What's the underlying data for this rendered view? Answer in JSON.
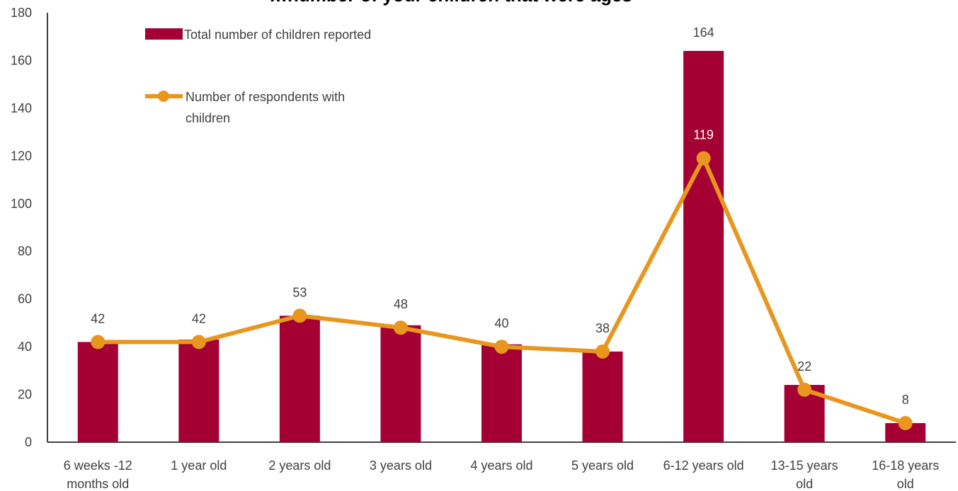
{
  "chart_data": {
    "type": "bar",
    "title": "…number of your children that were ages",
    "categories": [
      [
        "6 weeks -12",
        "months old"
      ],
      [
        "1 year old"
      ],
      [
        "2 years old"
      ],
      [
        "3 years old"
      ],
      [
        "4 years old"
      ],
      [
        "5 years old"
      ],
      [
        "6-12 years old"
      ],
      [
        "13-15 years",
        "old"
      ],
      [
        "16-18 years",
        "old"
      ]
    ],
    "series": [
      {
        "name": "Total number of children reported",
        "type": "bar",
        "color": "#a50034",
        "values": [
          42,
          43,
          53,
          49,
          41,
          38,
          164,
          24,
          8
        ]
      },
      {
        "name": "Number of respondents with children",
        "name_lines": [
          "Number of respondents with",
          "children"
        ],
        "type": "line",
        "color": "#e8961e",
        "values": [
          42,
          42,
          53,
          48,
          40,
          38,
          119,
          22,
          8
        ],
        "labels": [
          "42",
          "42",
          "53",
          "48",
          "40",
          "38",
          "119",
          "22",
          "8"
        ]
      }
    ],
    "bar_labels": [
      "",
      "",
      "",
      "",
      "",
      "",
      "164",
      "",
      ""
    ],
    "y_ticks": [
      "0",
      "20",
      "40",
      "60",
      "80",
      "100",
      "120",
      "140",
      "160",
      "180"
    ],
    "ylim": [
      0,
      180
    ],
    "xlabel": "",
    "ylabel": "",
    "grid": false,
    "legend": "top-left"
  }
}
